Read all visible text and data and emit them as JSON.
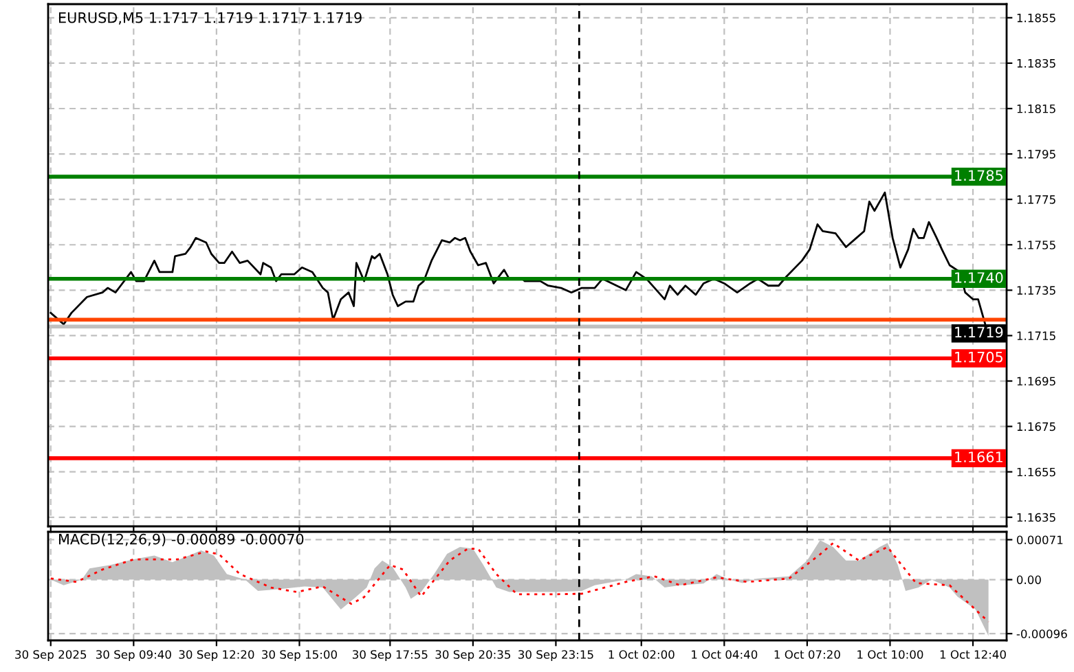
{
  "chart_data": [
    {
      "type": "line",
      "title": "EURUSD,M5 1.1717 1.1719 1.1717 1.1719",
      "x": [
        "2025-09-30T07:00",
        "2025-09-30T07:25",
        "2025-09-30T07:40",
        "2025-09-30T08:10",
        "2025-09-30T08:40",
        "2025-09-30T08:50",
        "2025-09-30T09:05",
        "2025-09-30T09:15",
        "2025-09-30T09:35",
        "2025-09-30T09:45",
        "2025-09-30T10:00",
        "2025-09-30T10:20",
        "2025-09-30T10:30",
        "2025-09-30T10:55",
        "2025-09-30T11:00",
        "2025-09-30T11:20",
        "2025-09-30T11:30",
        "2025-09-30T11:40",
        "2025-09-30T12:00",
        "2025-09-30T12:10",
        "2025-09-30T12:25",
        "2025-09-30T12:35",
        "2025-09-30T12:50",
        "2025-09-30T13:05",
        "2025-09-30T13:20",
        "2025-09-30T13:45",
        "2025-09-30T13:50",
        "2025-09-30T14:05",
        "2025-09-30T14:15",
        "2025-09-30T14:25",
        "2025-09-30T14:50",
        "2025-09-30T15:05",
        "2025-09-30T15:25",
        "2025-09-30T15:45",
        "2025-09-30T15:55",
        "2025-09-30T16:05",
        "2025-09-30T16:20",
        "2025-09-30T16:35",
        "2025-09-30T16:45",
        "2025-09-30T16:50",
        "2025-09-30T17:05",
        "2025-09-30T17:20",
        "2025-09-30T17:25",
        "2025-09-30T17:35",
        "2025-09-30T17:50",
        "2025-09-30T18:00",
        "2025-09-30T18:10",
        "2025-09-30T18:25",
        "2025-09-30T18:40",
        "2025-09-30T18:50",
        "2025-09-30T19:00",
        "2025-09-30T19:15",
        "2025-09-30T19:35",
        "2025-09-30T19:50",
        "2025-09-30T20:00",
        "2025-09-30T20:10",
        "2025-09-30T20:20",
        "2025-09-30T20:30",
        "2025-09-30T20:45",
        "2025-09-30T21:00",
        "2025-09-30T21:15",
        "2025-09-30T21:35",
        "2025-09-30T21:45",
        "2025-09-30T22:10",
        "2025-09-30T22:15",
        "2025-09-30T22:45",
        "2025-09-30T23:00",
        "2025-09-30T23:25",
        "2025-09-30T23:45",
        "2025-10-01T00:05",
        "2025-10-01T00:30",
        "2025-10-01T00:45",
        "2025-10-01T01:30",
        "2025-10-01T01:50",
        "2025-10-01T02:10",
        "2025-10-01T02:45",
        "2025-10-01T02:55",
        "2025-10-01T03:10",
        "2025-10-01T03:25",
        "2025-10-01T03:45",
        "2025-10-01T04:00",
        "2025-10-01T04:20",
        "2025-10-01T04:40",
        "2025-10-01T05:05",
        "2025-10-01T05:30",
        "2025-10-01T05:45",
        "2025-10-01T06:05",
        "2025-10-01T06:25",
        "2025-10-01T06:40",
        "2025-10-01T07:10",
        "2025-10-01T07:25",
        "2025-10-01T07:40",
        "2025-10-01T07:50",
        "2025-10-01T08:15",
        "2025-10-01T08:35",
        "2025-10-01T08:55",
        "2025-10-01T09:10",
        "2025-10-01T09:20",
        "2025-10-01T09:30",
        "2025-10-01T09:45",
        "2025-10-01T09:50",
        "2025-10-01T10:05",
        "2025-10-01T10:20",
        "2025-10-01T10:35",
        "2025-10-01T10:45",
        "2025-10-01T10:55",
        "2025-10-01T11:05",
        "2025-10-01T11:15",
        "2025-10-01T11:30",
        "2025-10-01T11:40",
        "2025-10-01T11:55",
        "2025-10-01T12:15",
        "2025-10-01T12:25",
        "2025-10-01T12:40",
        "2025-10-01T12:50",
        "2025-10-01T13:05"
      ],
      "series": [
        {
          "color": "#000000",
          "values": [
            1.1725,
            1.172,
            1.1725,
            1.1732,
            1.1734,
            1.1736,
            1.1734,
            1.1737,
            1.1743,
            1.1739,
            1.1739,
            1.1748,
            1.1743,
            1.1743,
            1.175,
            1.1751,
            1.1754,
            1.1758,
            1.1756,
            1.1751,
            1.1747,
            1.1747,
            1.1752,
            1.1747,
            1.1748,
            1.1742,
            1.1747,
            1.1745,
            1.1739,
            1.1742,
            1.1742,
            1.1745,
            1.1743,
            1.1736,
            1.1734,
            1.1722,
            1.1731,
            1.1734,
            1.1728,
            1.1747,
            1.1739,
            1.175,
            1.1749,
            1.1751,
            1.1742,
            1.1733,
            1.1728,
            1.173,
            1.173,
            1.1737,
            1.1739,
            1.1748,
            1.1757,
            1.1756,
            1.1758,
            1.1757,
            1.1758,
            1.1752,
            1.1746,
            1.1747,
            1.1738,
            1.1744,
            1.174,
            1.174,
            1.1739,
            1.1739,
            1.1737,
            1.1736,
            1.1734,
            1.1736,
            1.1736,
            1.174,
            1.1735,
            1.1743,
            1.174,
            1.1731,
            1.1737,
            1.1733,
            1.1737,
            1.1733,
            1.1738,
            1.174,
            1.1738,
            1.1734,
            1.1738,
            1.174,
            1.1737,
            1.1737,
            1.1741,
            1.1748,
            1.1753,
            1.1764,
            1.1761,
            1.176,
            1.1754,
            1.1758,
            1.1761,
            1.1774,
            1.177,
            1.1776,
            1.1778,
            1.1758,
            1.1745,
            1.1753,
            1.1762,
            1.1758,
            1.1758,
            1.1765,
            1.1758,
            1.1753,
            1.1746,
            1.1743,
            1.1734,
            1.1731,
            1.1731,
            1.1719
          ]
        }
      ],
      "xlim": [
        "2025-09-30T06:55",
        "2025-10-01T13:45"
      ],
      "xticks": [
        {
          "value": "2025-09-30T07:00",
          "label": null
        },
        {
          "value": "2025-09-30T09:40",
          "label": null
        },
        {
          "value": "2025-09-30T12:20",
          "label": null
        },
        {
          "value": "2025-09-30T15:00",
          "label": null
        },
        {
          "value": "2025-09-30T17:55",
          "label": null
        },
        {
          "value": "2025-09-30T20:35",
          "label": null
        },
        {
          "value": "2025-09-30T23:15",
          "label": null
        },
        {
          "value": "2025-10-01T02:00",
          "label": null
        },
        {
          "value": "2025-10-01T04:40",
          "label": null
        },
        {
          "value": "2025-10-01T07:20",
          "label": null
        },
        {
          "value": "2025-10-01T10:00",
          "label": null
        },
        {
          "value": "2025-10-01T12:40",
          "label": null
        }
      ],
      "ylim": [
        1.1631,
        1.1861
      ],
      "yticks": [
        1.1855,
        1.1835,
        1.1815,
        1.1795,
        1.1775,
        1.1755,
        1.1735,
        1.1715,
        1.1695,
        1.1675,
        1.1655,
        1.1635
      ],
      "tick_labels": "y",
      "grid": true,
      "ref_lines": [
        {
          "axis": "y",
          "value": 1.1785,
          "label": "1.1785",
          "color": "#008000"
        },
        {
          "axis": "y",
          "value": 1.174,
          "label": "1.1740",
          "color": "#008000"
        },
        {
          "axis": "y",
          "value": 1.1722,
          "color": "#ff4500"
        },
        {
          "axis": "y",
          "value": 1.1719,
          "label": "1.1719",
          "color": "#c0c0c0"
        },
        {
          "axis": "y",
          "value": 1.1705,
          "label": "1.1705",
          "color": "#ff0000"
        },
        {
          "axis": "y",
          "value": 1.1661,
          "label": "1.1661",
          "color": "#ff0000"
        },
        {
          "axis": "x",
          "value": "2025-10-01T00:00",
          "color": "#000000",
          "line_style": "dashed"
        }
      ]
    },
    {
      "type": "area",
      "title": "MACD(12,26,9) -0.00089 -0.00070",
      "series": [
        {
          "type": "area",
          "color": "#c0c0c0",
          "x": [
            "2025-09-30T07:00",
            "2025-09-30T07:25",
            "2025-09-30T08:00",
            "2025-09-30T08:15",
            "2025-09-30T08:55",
            "2025-09-30T09:40",
            "2025-09-30T10:20",
            "2025-09-30T10:55",
            "2025-09-30T11:35",
            "2025-09-30T11:50",
            "2025-09-30T12:15",
            "2025-09-30T12:40",
            "2025-09-30T13:15",
            "2025-09-30T13:40",
            "2025-09-30T14:20",
            "2025-09-30T15:10",
            "2025-09-30T15:45",
            "2025-09-30T16:20",
            "2025-09-30T16:45",
            "2025-09-30T17:10",
            "2025-09-30T17:25",
            "2025-09-30T17:40",
            "2025-09-30T18:00",
            "2025-09-30T18:25",
            "2025-09-30T18:35",
            "2025-09-30T18:55",
            "2025-09-30T19:20",
            "2025-09-30T19:45",
            "2025-09-30T20:10",
            "2025-09-30T20:35",
            "2025-09-30T20:55",
            "2025-09-30T21:20",
            "2025-09-30T21:45",
            "2025-09-30T22:35",
            "2025-09-30T23:15",
            "2025-10-01T00:05",
            "2025-10-01T00:30",
            "2025-10-01T01:30",
            "2025-10-01T01:50",
            "2025-10-01T02:20",
            "2025-10-01T02:45",
            "2025-10-01T03:15",
            "2025-10-01T04:00",
            "2025-10-01T04:25",
            "2025-10-01T04:50",
            "2025-10-01T05:15",
            "2025-10-01T05:45",
            "2025-10-01T06:45",
            "2025-10-01T07:20",
            "2025-10-01T07:45",
            "2025-10-01T08:10",
            "2025-10-01T08:35",
            "2025-10-01T09:00",
            "2025-10-01T09:40",
            "2025-10-01T09:55",
            "2025-10-01T10:15",
            "2025-10-01T10:30",
            "2025-10-01T10:55",
            "2025-10-01T11:20",
            "2025-10-01T11:55",
            "2025-10-01T12:10",
            "2025-10-01T12:45",
            "2025-10-01T13:10"
          ],
          "values": [
            0,
            -0.0001,
            0,
            0.0002,
            0.00026,
            0.00036,
            0.00043,
            0.00031,
            0.00046,
            0.00052,
            0.00043,
            0.0001,
            0,
            -0.0002,
            -0.00017,
            -0.00012,
            -0.00014,
            -0.00053,
            -0.00034,
            -0.00014,
            0.0002,
            0.00034,
            0.00022,
            -0.00014,
            -0.00034,
            -0.00022,
            0.0001,
            0.00046,
            0.00058,
            0.00055,
            0.00026,
            -0.00014,
            -0.00022,
            -0.00022,
            -0.00022,
            -0.0002,
            -0.0001,
            0,
            0.0001,
            6e-05,
            -0.00014,
            -0.0001,
            -7e-05,
            0.0001,
            0,
            -6e-05,
            2e-05,
            6e-05,
            0.00034,
            0.0007,
            0.00058,
            0.00034,
            0.00034,
            0.00058,
            0.00065,
            0.00026,
            -0.0002,
            -0.00014,
            0,
            -0.00014,
            -0.0003,
            -0.00053,
            -0.001
          ]
        },
        {
          "type": "line",
          "color": "#ff0000",
          "line_style": "dotted",
          "x": [
            "2025-09-30T07:00",
            "2025-09-30T07:50",
            "2025-09-30T08:40",
            "2025-09-30T09:40",
            "2025-09-30T11:05",
            "2025-09-30T12:00",
            "2025-09-30T12:25",
            "2025-09-30T13:05",
            "2025-09-30T14:05",
            "2025-09-30T14:55",
            "2025-09-30T15:45",
            "2025-09-30T16:40",
            "2025-09-30T17:05",
            "2025-09-30T17:55",
            "2025-09-30T18:20",
            "2025-09-30T18:55",
            "2025-09-30T19:50",
            "2025-09-30T20:25",
            "2025-09-30T20:45",
            "2025-09-30T21:20",
            "2025-09-30T22:00",
            "2025-09-30T23:15",
            "2025-10-01T00:05",
            "2025-10-01T01:30",
            "2025-10-01T02:25",
            "2025-10-01T03:15",
            "2025-10-01T04:25",
            "2025-10-01T05:25",
            "2025-10-01T06:45",
            "2025-10-01T07:45",
            "2025-10-01T08:10",
            "2025-10-01T09:00",
            "2025-10-01T09:55",
            "2025-10-01T10:50",
            "2025-10-01T11:55",
            "2025-10-01T13:10"
          ],
          "values": [
            2e-05,
            -4e-05,
            0.00018,
            0.00036,
            0.00036,
            0.0005,
            0.00045,
            0.0001,
            -0.00014,
            -0.00022,
            -0.00012,
            -0.00043,
            -0.00031,
            0.00026,
            0.00018,
            -0.0003,
            0.00034,
            0.00055,
            0.00055,
            0.0001,
            -0.00026,
            -0.00026,
            -0.00025,
            -4e-05,
            6e-05,
            -0.0001,
            4e-05,
            -4e-05,
            2e-05,
            0.00045,
            0.00065,
            0.00034,
            0.00058,
            -6e-05,
            -0.0001,
            -0.00075
          ]
        }
      ],
      "xlim": [
        "2025-09-30T06:55",
        "2025-10-01T13:45"
      ],
      "xticks": [
        {
          "value": "2025-09-30T07:00",
          "label": "30 Sep 2025"
        },
        {
          "value": "2025-09-30T09:40",
          "label": "30 Sep 09:40"
        },
        {
          "value": "2025-09-30T12:20",
          "label": "30 Sep 12:20"
        },
        {
          "value": "2025-09-30T15:00",
          "label": "30 Sep 15:00"
        },
        {
          "value": "2025-09-30T17:55",
          "label": "30 Sep 17:55"
        },
        {
          "value": "2025-09-30T20:35",
          "label": "30 Sep 20:35"
        },
        {
          "value": "2025-09-30T23:15",
          "label": "30 Sep 23:15"
        },
        {
          "value": "2025-10-01T02:00",
          "label": "1 Oct 02:00"
        },
        {
          "value": "2025-10-01T04:40",
          "label": "1 Oct 04:40"
        },
        {
          "value": "2025-10-01T07:20",
          "label": "1 Oct 07:20"
        },
        {
          "value": "2025-10-01T10:00",
          "label": "1 Oct 10:00"
        },
        {
          "value": "2025-10-01T12:40",
          "label": "1 Oct 12:40"
        }
      ],
      "ylim": [
        -0.00108,
        0.00085
      ],
      "yticks": [
        0.00071,
        {
          "value": 0,
          "label": "0.00"
        },
        -0.00096
      ],
      "grid": true,
      "ref_lines": [
        {
          "axis": "x",
          "value": "2025-10-01T00:00",
          "color": "#000000",
          "line_style": "dashed"
        }
      ]
    }
  ]
}
